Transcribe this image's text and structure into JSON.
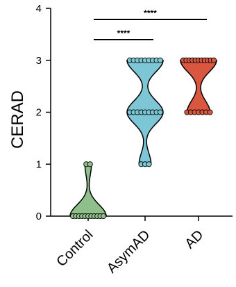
{
  "chart_data": {
    "type": "violin",
    "title": "",
    "xlabel": "",
    "ylabel": "CERAD",
    "ylim": [
      0,
      4
    ],
    "yticks": [
      "0",
      "1",
      "2",
      "3",
      "4"
    ],
    "categories": [
      "Control",
      "AsymAD",
      "AD"
    ],
    "colors": {
      "Control": "#8fbf8a",
      "AsymAD": "#7cc6d6",
      "AD": "#d9573f"
    },
    "series": [
      {
        "name": "Control",
        "values": [
          0,
          0,
          0,
          0,
          0,
          0,
          0,
          0,
          0,
          0,
          0,
          1,
          1
        ]
      },
      {
        "name": "AsymAD",
        "values": [
          1,
          1,
          1,
          2,
          2,
          2,
          2,
          2,
          2,
          2,
          2,
          2,
          3,
          3,
          3,
          3,
          3,
          3,
          3,
          3,
          3
        ]
      },
      {
        "name": "AD",
        "values": [
          2,
          2,
          2,
          2,
          2,
          2,
          2,
          3,
          3,
          3,
          3,
          3,
          3,
          3,
          3,
          3,
          3,
          3
        ]
      }
    ],
    "significance": [
      {
        "from": "Control",
        "to": "AsymAD",
        "label": "****"
      },
      {
        "from": "Control",
        "to": "AD",
        "label": "****"
      }
    ],
    "grid": false,
    "legend": "none"
  }
}
